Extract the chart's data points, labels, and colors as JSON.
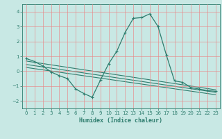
{
  "title": "",
  "xlabel": "Humidex (Indice chaleur)",
  "background_color": "#c8e8e4",
  "grid_color": "#e88888",
  "line_color": "#2e7d6e",
  "xlim": [
    -0.5,
    23.5
  ],
  "ylim": [
    -2.5,
    4.5
  ],
  "yticks": [
    -2,
    -1,
    0,
    1,
    2,
    3,
    4
  ],
  "xticks": [
    0,
    1,
    2,
    3,
    4,
    5,
    6,
    7,
    8,
    9,
    10,
    11,
    12,
    13,
    14,
    15,
    16,
    17,
    18,
    19,
    20,
    21,
    22,
    23
  ],
  "line1_x": [
    0,
    1,
    2,
    3,
    4,
    5,
    6,
    7,
    8,
    9,
    10,
    11,
    12,
    13,
    14,
    15,
    16,
    17,
    18,
    19,
    20,
    21,
    22,
    23
  ],
  "line1_y": [
    0.85,
    0.65,
    0.35,
    -0.05,
    -0.3,
    -0.5,
    -1.2,
    -1.5,
    -1.75,
    -0.6,
    0.5,
    1.35,
    2.6,
    3.55,
    3.6,
    3.85,
    3.0,
    1.1,
    -0.65,
    -0.75,
    -1.1,
    -1.2,
    -1.3,
    -1.35
  ],
  "line2_x": [
    0,
    23
  ],
  "line2_y": [
    0.68,
    -1.25
  ],
  "line3_x": [
    0,
    23
  ],
  "line3_y": [
    0.45,
    -1.42
  ],
  "line4_x": [
    0,
    23
  ],
  "line4_y": [
    0.25,
    -1.58
  ]
}
